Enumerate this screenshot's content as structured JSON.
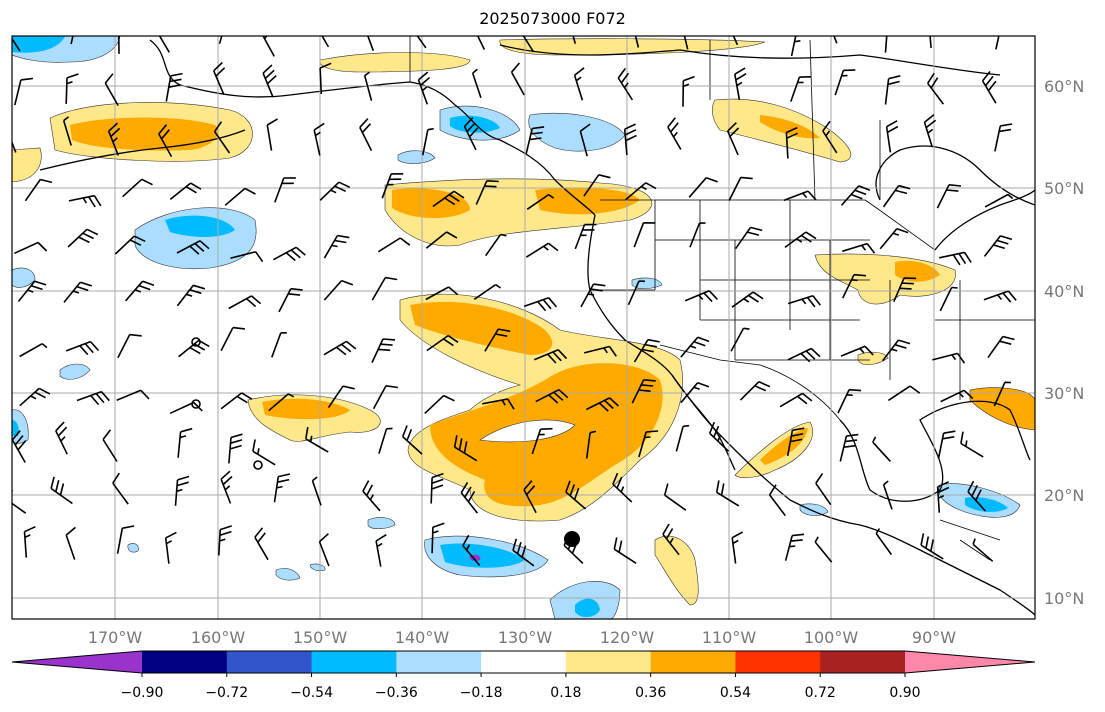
{
  "title": "2025073000 F072",
  "lon_ticks": [
    "170°W",
    "160°W",
    "150°W",
    "140°W",
    "130°W",
    "120°W",
    "110°W",
    "100°W",
    "90°W"
  ],
  "lat_ticks": [
    "60°N",
    "50°N",
    "40°N",
    "30°N",
    "20°N",
    "10°N"
  ],
  "colorbar": {
    "colors": [
      "#9933cc",
      "#000080",
      "#3355cc",
      "#00bbff",
      "#aaddff",
      "#ffffff",
      "#ffe88a",
      "#ffaa00",
      "#ff3300",
      "#aa2222",
      "#ff88aa"
    ],
    "labels": [
      "−0.90",
      "−0.72",
      "−0.54",
      "−0.36",
      "−0.18",
      "0.18",
      "0.36",
      "0.54",
      "0.72",
      "0.90"
    ]
  },
  "colors": {
    "light_yellow": "#ffe88a",
    "orange": "#ffaa00",
    "light_blue": "#aaddff",
    "cyan": "#00bbff",
    "purple": "#9933cc"
  }
}
